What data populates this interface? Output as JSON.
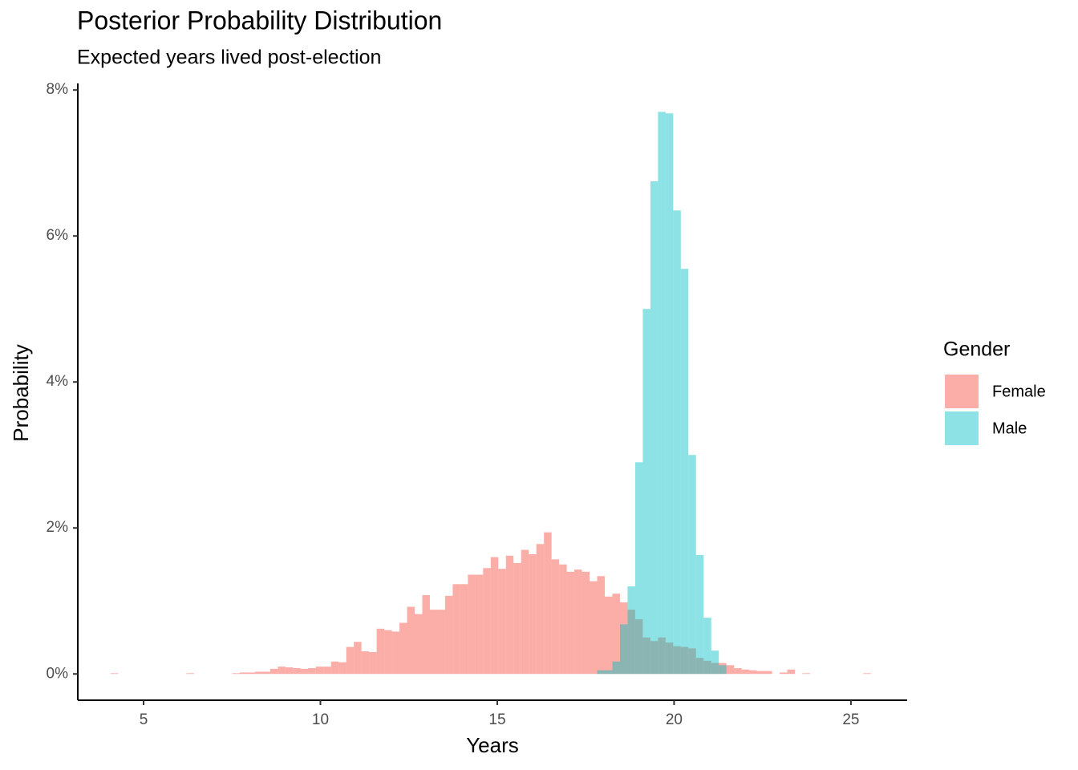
{
  "chart_data": {
    "type": "histogram",
    "title": "Posterior Probability Distribution",
    "subtitle": "Expected years lived post-election",
    "x_label": "Years",
    "y_label": "Probability",
    "legend_title": "Gender",
    "legend_position": "right",
    "bins": [
      4.065,
      4.28,
      4.495,
      4.71,
      4.925,
      5.14,
      5.355,
      5.57,
      5.785,
      6.0,
      6.215,
      6.43,
      6.645,
      6.86,
      7.075,
      7.29,
      7.505,
      7.72,
      7.935,
      8.15,
      8.365,
      8.58,
      8.795,
      9.01,
      9.225,
      9.44,
      9.655,
      9.87,
      10.085,
      10.3,
      10.515,
      10.73,
      10.945,
      11.16,
      11.375,
      11.59,
      11.805,
      12.02,
      12.235,
      12.45,
      12.665,
      12.88,
      13.095,
      13.31,
      13.525,
      13.74,
      13.955,
      14.17,
      14.385,
      14.6,
      14.815,
      15.03,
      15.245,
      15.46,
      15.675,
      15.89,
      16.105,
      16.32,
      16.535,
      16.75,
      16.965,
      17.18,
      17.395,
      17.61,
      17.825,
      18.04,
      18.255,
      18.47,
      18.685,
      18.9,
      19.115,
      19.33,
      19.545,
      19.76,
      19.975,
      20.19,
      20.405,
      20.62,
      20.835,
      21.05,
      21.265,
      21.48,
      21.695,
      21.91,
      22.125,
      22.34,
      22.555,
      22.77,
      22.985,
      23.2,
      23.415,
      23.63,
      23.845,
      24.06,
      24.275,
      24.49,
      24.705,
      24.92,
      25.135,
      25.35,
      25.565
    ],
    "series": [
      {
        "name": "Female",
        "color": "#F8766D",
        "opacity": 0.6,
        "values": [
          0.01,
          0,
          0,
          0,
          0,
          0,
          0,
          0,
          0,
          0,
          0.01,
          0,
          0,
          0,
          0,
          0,
          0.01,
          0.02,
          0.02,
          0.03,
          0.03,
          0.07,
          0.1,
          0.09,
          0.08,
          0.07,
          0.08,
          0.1,
          0.1,
          0.17,
          0.16,
          0.37,
          0.44,
          0.31,
          0.3,
          0.62,
          0.6,
          0.58,
          0.7,
          0.92,
          0.82,
          1.08,
          0.88,
          0.88,
          1.07,
          1.23,
          1.23,
          1.36,
          1.36,
          1.45,
          1.6,
          1.44,
          1.62,
          1.52,
          1.7,
          1.64,
          1.78,
          1.94,
          1.57,
          1.5,
          1.4,
          1.43,
          1.4,
          1.27,
          1.34,
          1.06,
          1.1,
          0.98,
          0.88,
          0.75,
          0.5,
          0.45,
          0.5,
          0.43,
          0.38,
          0.37,
          0.35,
          0.22,
          0.18,
          0.15,
          0.15,
          0.12,
          0.08,
          0.06,
          0.05,
          0.04,
          0.04,
          0,
          0.02,
          0.06,
          0,
          0.01,
          0,
          0,
          0,
          0,
          0,
          0,
          0,
          0.01
        ]
      },
      {
        "name": "Male",
        "color": "#00BFC4",
        "opacity": 0.45,
        "values": [
          0,
          0,
          0,
          0,
          0,
          0,
          0,
          0,
          0,
          0,
          0,
          0,
          0,
          0,
          0,
          0,
          0,
          0,
          0,
          0,
          0,
          0,
          0,
          0,
          0,
          0,
          0,
          0,
          0,
          0,
          0,
          0,
          0,
          0,
          0,
          0,
          0,
          0,
          0,
          0,
          0,
          0,
          0,
          0,
          0,
          0,
          0,
          0,
          0,
          0,
          0,
          0,
          0,
          0,
          0,
          0,
          0,
          0,
          0,
          0,
          0,
          0,
          0,
          0,
          0.05,
          0.05,
          0.17,
          0.68,
          1.2,
          2.9,
          5.0,
          6.75,
          7.7,
          7.68,
          6.35,
          5.55,
          3.0,
          1.63,
          0.77,
          0.32,
          0.12,
          0,
          0,
          0,
          0,
          0,
          0,
          0,
          0,
          0,
          0,
          0,
          0,
          0,
          0,
          0,
          0,
          0,
          0,
          0
        ]
      }
    ],
    "xlim": [
      3.14,
      26.59
    ],
    "ylim": [
      -0.36,
      8.09
    ],
    "xticks": [
      5,
      10,
      15,
      20,
      25
    ],
    "yticks": [
      {
        "value": 0,
        "label": "0%"
      },
      {
        "value": 2,
        "label": "2%"
      },
      {
        "value": 4,
        "label": "4%"
      },
      {
        "value": 6,
        "label": "6%"
      },
      {
        "value": 8,
        "label": "8%"
      }
    ],
    "grid": false
  }
}
